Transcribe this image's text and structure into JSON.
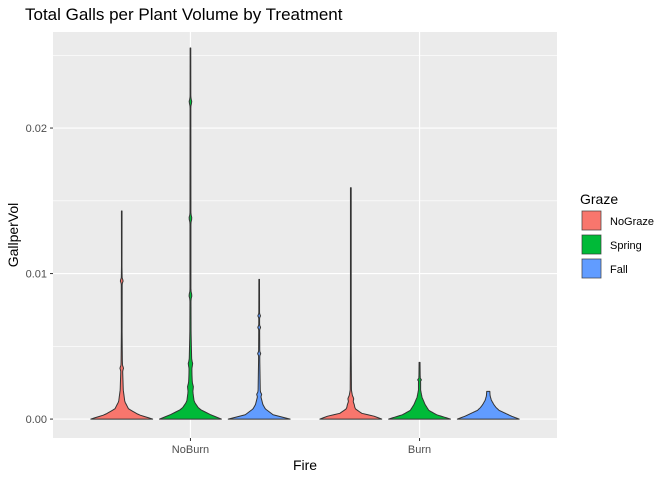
{
  "chart_data": {
    "type": "violin",
    "title": "Total Galls per Plant Volume by Treatment",
    "xlabel": "Fire",
    "ylabel": "GallperVol",
    "categories": [
      "NoBurn",
      "Burn"
    ],
    "ylim": [
      -0.0013,
      0.0266
    ],
    "yticks": [
      0.0,
      0.01,
      0.02
    ],
    "ytick_labels": [
      "0.00",
      "0.01",
      "0.02"
    ],
    "legend": {
      "title": "Graze",
      "position": "right",
      "entries": [
        {
          "name": "NoGraze",
          "color": "#F8766D"
        },
        {
          "name": "Spring",
          "color": "#00BA38"
        },
        {
          "name": "Fall",
          "color": "#619CFF"
        }
      ]
    },
    "series": [
      {
        "fire": "NoBurn",
        "graze": "NoGraze",
        "min": 0.0,
        "max": 0.0143,
        "width": 0.9,
        "density": [
          [
            0.0,
            1.0
          ],
          [
            0.0003,
            0.55
          ],
          [
            0.0007,
            0.22
          ],
          [
            0.0012,
            0.1
          ],
          [
            0.002,
            0.05
          ],
          [
            0.003,
            0.035
          ],
          [
            0.004,
            0.02
          ],
          [
            0.006,
            0.012
          ],
          [
            0.0095,
            0.015
          ],
          [
            0.0105,
            0.008
          ],
          [
            0.0143,
            0.01
          ]
        ],
        "bulges": [
          0.0035,
          0.0095
        ]
      },
      {
        "fire": "NoBurn",
        "graze": "Spring",
        "min": 0.0,
        "max": 0.0255,
        "width": 0.9,
        "density": [
          [
            0.0,
            1.0
          ],
          [
            0.0003,
            0.65
          ],
          [
            0.0007,
            0.28
          ],
          [
            0.0012,
            0.12
          ],
          [
            0.002,
            0.07
          ],
          [
            0.003,
            0.05
          ],
          [
            0.004,
            0.04
          ],
          [
            0.006,
            0.02
          ],
          [
            0.009,
            0.015
          ],
          [
            0.014,
            0.015
          ],
          [
            0.022,
            0.012
          ],
          [
            0.0255,
            0.01
          ]
        ],
        "bulges": [
          0.0022,
          0.0038,
          0.0085,
          0.0138,
          0.0218
        ]
      },
      {
        "fire": "NoBurn",
        "graze": "Fall",
        "min": 0.0,
        "max": 0.0096,
        "width": 0.9,
        "density": [
          [
            0.0,
            1.0
          ],
          [
            0.0003,
            0.45
          ],
          [
            0.0007,
            0.2
          ],
          [
            0.001,
            0.12
          ],
          [
            0.0015,
            0.06
          ],
          [
            0.002,
            0.035
          ],
          [
            0.004,
            0.02
          ],
          [
            0.006,
            0.015
          ],
          [
            0.0072,
            0.012
          ],
          [
            0.0096,
            0.01
          ]
        ],
        "bulges": [
          0.0017,
          0.0045,
          0.0063,
          0.0071
        ]
      },
      {
        "fire": "Burn",
        "graze": "NoGraze",
        "min": 0.0,
        "max": 0.0159,
        "width": 0.9,
        "density": [
          [
            0.0,
            1.0
          ],
          [
            0.0002,
            0.75
          ],
          [
            0.0004,
            0.35
          ],
          [
            0.0007,
            0.15
          ],
          [
            0.001,
            0.08
          ],
          [
            0.0015,
            0.06
          ],
          [
            0.002,
            0.02
          ],
          [
            0.005,
            0.012
          ],
          [
            0.0159,
            0.012
          ]
        ],
        "bulges": [
          0.001,
          0.0014
        ]
      },
      {
        "fire": "Burn",
        "graze": "Spring",
        "min": 0.0,
        "max": 0.0039,
        "width": 0.9,
        "density": [
          [
            0.0,
            1.0
          ],
          [
            0.0003,
            0.55
          ],
          [
            0.0006,
            0.3
          ],
          [
            0.001,
            0.18
          ],
          [
            0.0015,
            0.08
          ],
          [
            0.002,
            0.035
          ],
          [
            0.0025,
            0.035
          ],
          [
            0.003,
            0.02
          ],
          [
            0.0039,
            0.015
          ]
        ],
        "bulges": [
          0.0027
        ]
      },
      {
        "fire": "Burn",
        "graze": "Fall",
        "min": 0.0,
        "max": 0.0019,
        "width": 0.9,
        "density": [
          [
            0.0,
            1.0
          ],
          [
            0.0002,
            0.75
          ],
          [
            0.0004,
            0.55
          ],
          [
            0.0006,
            0.35
          ],
          [
            0.0008,
            0.25
          ],
          [
            0.001,
            0.18
          ],
          [
            0.0013,
            0.1
          ],
          [
            0.0016,
            0.06
          ],
          [
            0.0019,
            0.05
          ]
        ],
        "bulges": []
      }
    ]
  }
}
